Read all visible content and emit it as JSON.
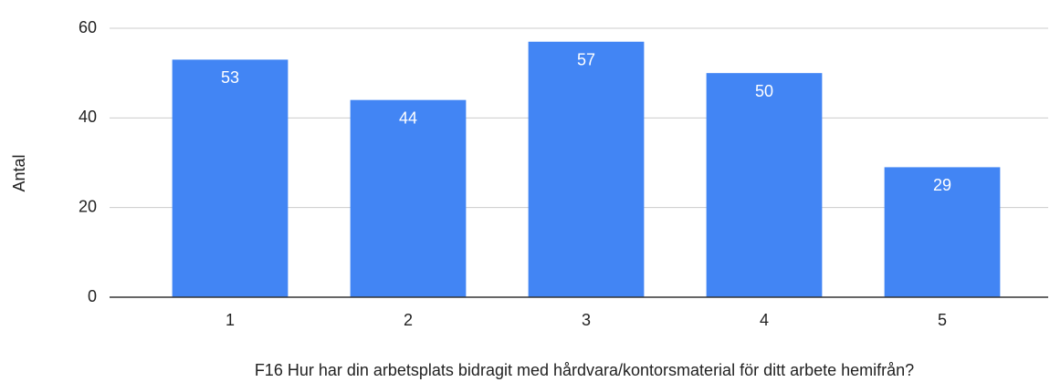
{
  "chart_data": {
    "type": "bar",
    "x_label": "F16 Hur har din arbetsplats bidragit med hårdvara/kontorsmaterial för ditt arbete hemifrån?",
    "y_label": "Antal",
    "categories": [
      "1",
      "2",
      "3",
      "4",
      "5"
    ],
    "values": [
      53,
      44,
      57,
      50,
      29
    ],
    "color": "#4285f4",
    "ylim": [
      0,
      60
    ],
    "yticks": [
      0,
      20,
      40,
      60
    ],
    "grid": true
  }
}
